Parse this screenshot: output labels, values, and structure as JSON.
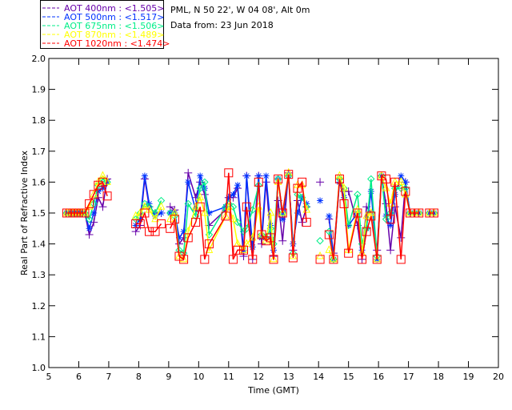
{
  "header": {
    "site_line": "PML, N 50 22', W 04 08', Alt 0m",
    "date_line": "Data from: 23 Jun 2018"
  },
  "chart_data": {
    "type": "line",
    "title": "",
    "xlabel": "Time (GMT)",
    "ylabel": "Real Part of Refractive Index",
    "xlim": [
      5,
      20
    ],
    "ylim": [
      1.0,
      2.0
    ],
    "xticks": [
      "5",
      "6",
      "7",
      "8",
      "9",
      "10",
      "11",
      "12",
      "13",
      "14",
      "15",
      "16",
      "17",
      "18",
      "19",
      "20"
    ],
    "yticks": [
      "1.0",
      "1.1",
      "1.2",
      "1.3",
      "1.4",
      "1.5",
      "1.6",
      "1.7",
      "1.8",
      "1.9",
      "2.0"
    ],
    "legend_placement": "top-left-outside",
    "x": [
      5.6,
      5.7,
      5.8,
      5.9,
      6.0,
      6.1,
      6.2,
      6.35,
      6.5,
      6.65,
      6.8,
      6.95,
      null,
      7.9,
      8.05,
      8.2,
      8.35,
      8.55,
      8.75,
      null,
      9.05,
      9.2,
      9.35,
      9.5,
      9.65,
      9.9,
      10.05,
      10.2,
      10.35,
      10.9,
      11.0,
      11.15,
      11.3,
      11.5,
      11.6,
      11.8,
      12.0,
      12.1,
      12.25,
      12.4,
      12.5,
      12.65,
      12.8,
      13.0,
      13.15,
      13.3,
      13.45,
      13.6,
      null,
      14.05,
      null,
      14.35,
      14.5,
      14.7,
      14.85,
      15.0,
      15.3,
      15.45,
      15.6,
      15.75,
      15.95,
      16.1,
      16.25,
      16.4,
      16.55,
      16.75,
      16.9,
      17.05,
      17.2,
      17.35,
      null,
      17.7,
      17.85
    ],
    "series": [
      {
        "name": "AOT  400nm",
        "legend": "AOT  400nm : <1.505>",
        "mean": "<1.505>",
        "color": "#6600aa",
        "marker": "plus",
        "values": [
          1.5,
          1.5,
          1.5,
          1.5,
          1.5,
          1.5,
          1.5,
          1.43,
          1.47,
          1.55,
          1.52,
          1.61,
          null,
          1.44,
          1.46,
          1.61,
          1.52,
          1.5,
          1.5,
          null,
          1.52,
          1.51,
          1.4,
          1.42,
          1.63,
          1.55,
          1.6,
          1.56,
          1.46,
          1.51,
          1.55,
          1.55,
          1.58,
          1.36,
          1.62,
          1.35,
          1.62,
          1.4,
          1.6,
          1.42,
          1.36,
          1.54,
          1.41,
          1.63,
          1.38,
          1.54,
          1.47,
          1.52,
          null,
          1.6,
          null,
          1.48,
          1.37,
          1.61,
          1.57,
          1.57,
          1.46,
          1.35,
          1.52,
          1.5,
          1.38,
          1.62,
          1.53,
          1.38,
          1.52,
          1.42,
          1.6,
          1.5,
          1.5,
          1.5,
          null,
          1.5,
          1.5
        ]
      },
      {
        "name": "AOT  500nm",
        "legend": "AOT  500nm : <1.517>",
        "mean": "<1.517>",
        "color": "#0033ff",
        "marker": "star",
        "values": [
          1.5,
          1.5,
          1.5,
          1.5,
          1.5,
          1.5,
          1.5,
          1.45,
          1.5,
          1.57,
          1.58,
          1.6,
          null,
          1.46,
          1.48,
          1.62,
          1.53,
          1.49,
          1.5,
          null,
          1.5,
          1.5,
          1.42,
          1.44,
          1.6,
          1.51,
          1.62,
          1.58,
          1.5,
          1.52,
          1.55,
          1.56,
          1.59,
          1.38,
          1.62,
          1.39,
          1.62,
          1.42,
          1.62,
          1.46,
          1.38,
          1.61,
          1.48,
          1.62,
          1.4,
          1.5,
          1.55,
          1.53,
          null,
          1.54,
          null,
          1.49,
          1.35,
          1.6,
          1.55,
          1.46,
          1.5,
          1.38,
          1.45,
          1.57,
          1.35,
          1.62,
          1.49,
          1.46,
          1.56,
          1.62,
          1.6,
          1.5,
          1.5,
          1.5,
          null,
          1.5,
          1.5
        ]
      },
      {
        "name": "AOT  675nm",
        "legend": "AOT  675nm : <1.506>",
        "mean": "<1.506>",
        "color": "#00ee88",
        "marker": "diamond",
        "values": [
          1.5,
          1.5,
          1.5,
          1.5,
          1.5,
          1.5,
          1.5,
          1.48,
          1.53,
          1.59,
          1.61,
          1.6,
          null,
          1.48,
          1.5,
          1.53,
          1.52,
          1.5,
          1.54,
          null,
          1.5,
          1.49,
          1.38,
          1.37,
          1.53,
          1.49,
          1.58,
          1.6,
          1.43,
          1.52,
          1.53,
          1.52,
          1.47,
          1.44,
          1.45,
          1.51,
          1.59,
          1.43,
          1.42,
          1.45,
          1.4,
          1.61,
          1.5,
          1.62,
          1.37,
          1.56,
          1.55,
          1.52,
          null,
          1.41,
          null,
          1.44,
          1.35,
          1.61,
          1.58,
          1.46,
          1.56,
          1.4,
          1.45,
          1.61,
          1.36,
          1.62,
          1.48,
          1.5,
          1.58,
          1.58,
          1.58,
          1.5,
          1.5,
          1.5,
          null,
          1.5,
          1.5
        ]
      },
      {
        "name": "AOT  870nm",
        "legend": "AOT  870nm : <1.489>",
        "mean": "<1.489>",
        "color": "#ffff00",
        "marker": "triangle",
        "values": [
          1.5,
          1.5,
          1.5,
          1.5,
          1.5,
          1.5,
          1.5,
          1.52,
          1.56,
          1.6,
          1.62,
          1.6,
          null,
          1.49,
          1.5,
          1.52,
          1.51,
          1.48,
          1.52,
          null,
          1.48,
          1.5,
          1.36,
          1.35,
          1.44,
          1.52,
          1.55,
          1.5,
          1.38,
          1.49,
          1.52,
          1.48,
          1.4,
          1.38,
          1.4,
          1.42,
          1.52,
          1.43,
          1.41,
          1.5,
          1.35,
          1.6,
          1.5,
          1.63,
          1.36,
          1.59,
          1.59,
          1.51,
          null,
          1.36,
          null,
          1.38,
          1.35,
          1.62,
          1.58,
          1.38,
          1.51,
          1.37,
          1.49,
          1.5,
          1.35,
          1.62,
          1.58,
          1.53,
          1.6,
          1.6,
          1.56,
          1.5,
          1.5,
          1.5,
          null,
          1.5,
          1.5
        ]
      },
      {
        "name": "AOT 1020nm",
        "legend": "AOT 1020nm : <1.474>",
        "mean": "<1.474>",
        "color": "#ff0000",
        "marker": "square",
        "values": [
          1.5,
          1.5,
          1.5,
          1.5,
          1.5,
          1.5,
          1.5,
          1.53,
          1.56,
          1.59,
          1.6,
          1.555,
          null,
          1.465,
          1.465,
          1.5,
          1.44,
          1.44,
          1.465,
          null,
          1.45,
          1.48,
          1.36,
          1.35,
          1.42,
          1.47,
          1.52,
          1.35,
          1.4,
          1.49,
          1.63,
          1.35,
          1.38,
          1.38,
          1.52,
          1.35,
          1.6,
          1.43,
          1.41,
          1.42,
          1.35,
          1.61,
          1.5,
          1.625,
          1.355,
          1.58,
          1.6,
          1.47,
          null,
          1.35,
          null,
          1.43,
          1.35,
          1.61,
          1.53,
          1.37,
          1.5,
          1.35,
          1.44,
          1.49,
          1.35,
          1.62,
          1.61,
          1.48,
          1.6,
          1.35,
          1.57,
          1.5,
          1.5,
          1.5,
          null,
          1.5,
          1.5
        ]
      }
    ]
  }
}
